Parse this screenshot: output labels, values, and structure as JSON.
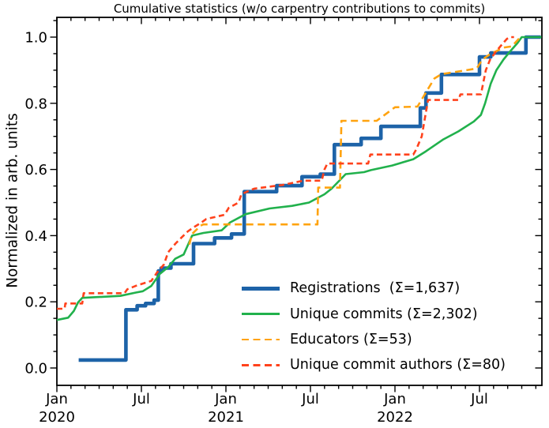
{
  "chart_data": {
    "type": "line",
    "title": "Cumulative statistics (w/o carpentry contributions to commits)",
    "xlabel": "",
    "ylabel": "Normalized in arb. units",
    "grid": false,
    "legend_position": "lower right inside, frameless",
    "x_unit": "months since Jan 2020",
    "x_axis": {
      "range_months": [
        0,
        34.4
      ],
      "major_ticks": [
        {
          "m": 0,
          "label": "Jan",
          "year": "2020"
        },
        {
          "m": 6,
          "label": "Jul",
          "year": ""
        },
        {
          "m": 12,
          "label": "Jan",
          "year": "2021"
        },
        {
          "m": 18,
          "label": "Jul",
          "year": ""
        },
        {
          "m": 24,
          "label": "Jan",
          "year": "2022"
        },
        {
          "m": 30,
          "label": "Jul",
          "year": ""
        }
      ],
      "minor_tick_every_months": 1
    },
    "y_axis": {
      "range": [
        -0.05,
        1.06
      ],
      "major_ticks": [
        {
          "v": 0.0,
          "label": "0.0"
        },
        {
          "v": 0.2,
          "label": "0.2"
        },
        {
          "v": 0.4,
          "label": "0.4"
        },
        {
          "v": 0.6,
          "label": "0.6"
        },
        {
          "v": 0.8,
          "label": "0.8"
        },
        {
          "v": 1.0,
          "label": "1.0"
        }
      ],
      "minor_tick_every": 0.05
    },
    "series": [
      {
        "name": "registrations",
        "label": "Registrations  (Σ=1,637)",
        "sum": "1,637",
        "color": "#1d63a8",
        "style": "solid",
        "line_width": 4.6,
        "step": true,
        "points": [
          [
            1.55,
            0.024
          ],
          [
            4.9,
            0.176
          ],
          [
            5.7,
            0.188
          ],
          [
            6.3,
            0.195
          ],
          [
            6.9,
            0.205
          ],
          [
            7.2,
            0.293
          ],
          [
            7.4,
            0.302
          ],
          [
            8.1,
            0.315
          ],
          [
            9.7,
            0.376
          ],
          [
            11.2,
            0.393
          ],
          [
            12.4,
            0.405
          ],
          [
            13.3,
            0.533
          ],
          [
            15.6,
            0.551
          ],
          [
            17.4,
            0.578
          ],
          [
            18.7,
            0.586
          ],
          [
            19.7,
            0.675
          ],
          [
            21.6,
            0.694
          ],
          [
            23.0,
            0.73
          ],
          [
            25.8,
            0.786
          ],
          [
            26.2,
            0.831
          ],
          [
            27.3,
            0.887
          ],
          [
            30.0,
            0.94
          ],
          [
            30.8,
            0.952
          ],
          [
            33.3,
            1.0
          ],
          [
            34.35,
            1.0
          ]
        ]
      },
      {
        "name": "unique-commits",
        "label": "Unique commits (Σ=2,302)",
        "sum": "2,302",
        "color": "#21b14c",
        "style": "solid",
        "line_width": 2.6,
        "step": false,
        "points": [
          [
            0,
            0.145
          ],
          [
            0.8,
            0.152
          ],
          [
            1.2,
            0.172
          ],
          [
            1.5,
            0.198
          ],
          [
            1.8,
            0.212
          ],
          [
            4.5,
            0.218
          ],
          [
            5.6,
            0.228
          ],
          [
            6.1,
            0.232
          ],
          [
            6.7,
            0.248
          ],
          [
            7.3,
            0.284
          ],
          [
            7.9,
            0.305
          ],
          [
            8.4,
            0.33
          ],
          [
            9.0,
            0.343
          ],
          [
            9.6,
            0.4
          ],
          [
            10.4,
            0.408
          ],
          [
            11.7,
            0.416
          ],
          [
            12.3,
            0.44
          ],
          [
            13.4,
            0.465
          ],
          [
            15.1,
            0.482
          ],
          [
            16.7,
            0.49
          ],
          [
            17.9,
            0.5
          ],
          [
            19.0,
            0.525
          ],
          [
            19.5,
            0.542
          ],
          [
            20.5,
            0.586
          ],
          [
            21.8,
            0.592
          ],
          [
            22.3,
            0.598
          ],
          [
            23.8,
            0.612
          ],
          [
            25.3,
            0.631
          ],
          [
            26.2,
            0.655
          ],
          [
            27.4,
            0.69
          ],
          [
            28.5,
            0.715
          ],
          [
            29.6,
            0.745
          ],
          [
            30.1,
            0.765
          ],
          [
            30.4,
            0.8
          ],
          [
            30.8,
            0.86
          ],
          [
            31.2,
            0.9
          ],
          [
            31.7,
            0.932
          ],
          [
            32.2,
            0.958
          ],
          [
            32.7,
            0.982
          ],
          [
            33.0,
            1.0
          ],
          [
            34.4,
            1.0
          ]
        ]
      },
      {
        "name": "educators",
        "label": "Educators (Σ=53)",
        "sum": "53",
        "color": "#ffa30f",
        "style": "dashed",
        "dash": "9 5.5",
        "line_width": 2.6,
        "step": false,
        "points": [
          [
            9.4,
            0.373
          ],
          [
            9.6,
            0.405
          ],
          [
            10.2,
            0.43
          ],
          [
            10.4,
            0.434
          ],
          [
            18.5,
            0.434
          ],
          [
            18.55,
            0.545
          ],
          [
            20.1,
            0.545
          ],
          [
            20.2,
            0.747
          ],
          [
            22.7,
            0.747
          ],
          [
            24.0,
            0.788
          ],
          [
            25.6,
            0.79
          ],
          [
            26.3,
            0.84
          ],
          [
            26.8,
            0.875
          ],
          [
            27.3,
            0.888
          ],
          [
            29.8,
            0.905
          ],
          [
            30.2,
            0.932
          ],
          [
            30.7,
            0.947
          ],
          [
            31.3,
            0.96
          ],
          [
            31.8,
            0.969
          ],
          [
            32.3,
            0.972
          ],
          [
            32.9,
            1.0
          ]
        ]
      },
      {
        "name": "unique-commit-authors",
        "label": "Unique commit authors (Σ=80)",
        "sum": "80",
        "color": "#ff421c",
        "style": "dashed",
        "dash": "7 4.5",
        "line_width": 2.6,
        "step": false,
        "points": [
          [
            0,
            0.179
          ],
          [
            0.55,
            0.179
          ],
          [
            0.6,
            0.195
          ],
          [
            1.8,
            0.195
          ],
          [
            1.9,
            0.226
          ],
          [
            4.8,
            0.226
          ],
          [
            5.0,
            0.238
          ],
          [
            5.7,
            0.25
          ],
          [
            6.7,
            0.263
          ],
          [
            7.1,
            0.288
          ],
          [
            7.35,
            0.3
          ],
          [
            7.6,
            0.313
          ],
          [
            7.9,
            0.35
          ],
          [
            8.4,
            0.375
          ],
          [
            8.7,
            0.388
          ],
          [
            9.3,
            0.413
          ],
          [
            9.7,
            0.425
          ],
          [
            10.2,
            0.438
          ],
          [
            10.6,
            0.45
          ],
          [
            11.9,
            0.463
          ],
          [
            12.2,
            0.484
          ],
          [
            12.9,
            0.5
          ],
          [
            13.1,
            0.525
          ],
          [
            13.5,
            0.533
          ],
          [
            14.0,
            0.542
          ],
          [
            16.0,
            0.553
          ],
          [
            17.5,
            0.566
          ],
          [
            18.8,
            0.566
          ],
          [
            19.0,
            0.6
          ],
          [
            19.2,
            0.618
          ],
          [
            22.1,
            0.618
          ],
          [
            22.25,
            0.645
          ],
          [
            25.3,
            0.645
          ],
          [
            25.5,
            0.66
          ],
          [
            25.9,
            0.7
          ],
          [
            26.35,
            0.81
          ],
          [
            28.5,
            0.81
          ],
          [
            28.65,
            0.827
          ],
          [
            30.1,
            0.827
          ],
          [
            30.45,
            0.9
          ],
          [
            30.75,
            0.932
          ],
          [
            31.15,
            0.955
          ],
          [
            31.6,
            0.978
          ],
          [
            31.95,
            0.995
          ],
          [
            32.15,
            1.0
          ],
          [
            32.45,
            1.0
          ]
        ]
      }
    ]
  }
}
